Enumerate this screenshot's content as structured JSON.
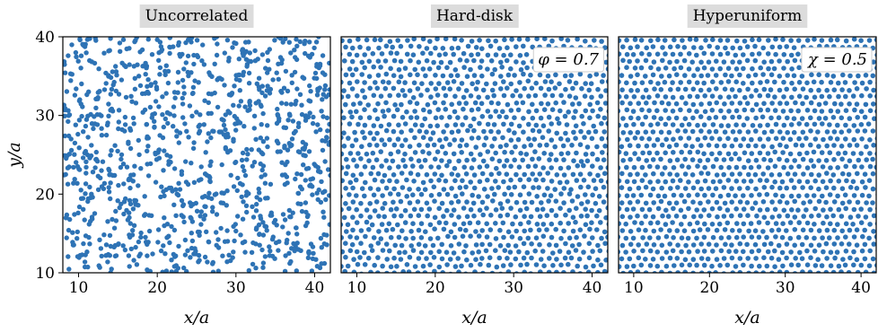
{
  "chart_data": [
    {
      "type": "scatter",
      "title": "Uncorrelated",
      "xlabel": "x/a",
      "ylabel": "y/a",
      "xlim": [
        8,
        42
      ],
      "ylim": [
        10,
        40
      ],
      "xticks": [
        10,
        20,
        30,
        40
      ],
      "yticks": [
        10,
        20,
        30,
        40
      ],
      "annotation": "",
      "pattern": "random",
      "point_color": "#2e73b5",
      "num_points": 1100
    },
    {
      "type": "scatter",
      "title": "Hard-disk",
      "xlabel": "x/a",
      "ylabel": "",
      "xlim": [
        8,
        42
      ],
      "ylim": [
        10,
        40
      ],
      "xticks": [
        10,
        20,
        30,
        40
      ],
      "yticks": [],
      "annotation": "φ = 0.7",
      "pattern": "hard-disk",
      "point_color": "#2e73b5",
      "num_points": 1100
    },
    {
      "type": "scatter",
      "title": "Hyperuniform",
      "xlabel": "x/a",
      "ylabel": "",
      "xlim": [
        8,
        42
      ],
      "ylim": [
        10,
        40
      ],
      "xticks": [
        10,
        20,
        30,
        40
      ],
      "yticks": [],
      "annotation": "χ = 0.5",
      "pattern": "hyperuniform",
      "point_color": "#2e73b5",
      "num_points": 1100
    }
  ]
}
